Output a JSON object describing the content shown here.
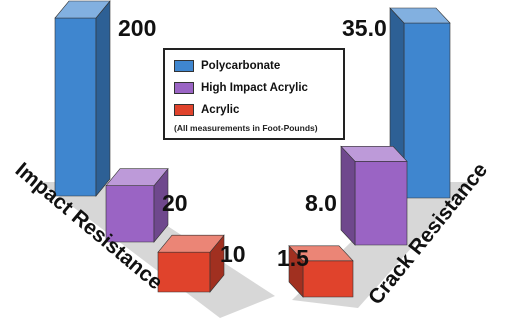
{
  "colors": {
    "polycarbonate": "#3f86cf",
    "high_impact_acrylic": "#9a64c4",
    "acrylic": "#e0432c",
    "floor": "#d7d7d7"
  },
  "legend": {
    "items": [
      {
        "label": "Polycarbonate",
        "color": "#3f86cf"
      },
      {
        "label": "High Impact Acrylic",
        "color": "#9a64c4"
      },
      {
        "label": "Acrylic",
        "color": "#e0432c"
      }
    ],
    "note": "(All measurements in Foot-Pounds)"
  },
  "chart_data": [
    {
      "type": "bar",
      "title": "",
      "xlabel": "Impact Resistance",
      "ylabel": "",
      "categories": [
        "Polycarbonate",
        "High Impact Acrylic",
        "Acrylic"
      ],
      "values": [
        200,
        20,
        10
      ],
      "value_labels": [
        "200",
        "20",
        "10"
      ],
      "unit": "Foot-Pounds"
    },
    {
      "type": "bar",
      "title": "",
      "xlabel": "Crack Resistance",
      "ylabel": "",
      "categories": [
        "Polycarbonate",
        "High Impact Acrylic",
        "Acrylic"
      ],
      "values": [
        35.0,
        8.0,
        1.5
      ],
      "value_labels": [
        "35.0",
        "8.0",
        "1.5"
      ],
      "unit": "Foot-Pounds"
    }
  ]
}
